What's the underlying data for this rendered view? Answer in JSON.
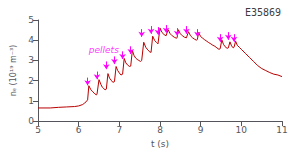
{
  "chart_data": {
    "type": "line",
    "title": "E35869",
    "xlabel": "t (s)",
    "ylabel": "nₑ (10¹⁹ m⁻³)",
    "color": "#bb0000",
    "xlim": [
      5,
      11
    ],
    "ylim": [
      0,
      5
    ],
    "xticks": [
      5,
      6,
      7,
      8,
      9,
      10,
      11
    ],
    "yticks": [
      0,
      1,
      2,
      3,
      4,
      5
    ],
    "grid": false,
    "x": [
      5.0,
      5.3,
      5.5,
      5.7,
      5.9,
      6.0,
      6.1,
      6.15,
      6.18,
      6.2,
      6.22,
      6.25,
      6.3,
      6.35,
      6.38,
      6.4,
      6.43,
      6.45,
      6.5,
      6.55,
      6.58,
      6.62,
      6.65,
      6.68,
      6.72,
      6.76,
      6.8,
      6.84,
      6.88,
      6.92,
      6.96,
      7.0,
      7.04,
      7.08,
      7.12,
      7.16,
      7.2,
      7.25,
      7.28,
      7.32,
      7.36,
      7.4,
      7.44,
      7.48,
      7.52,
      7.55,
      7.6,
      7.65,
      7.7,
      7.75,
      7.78,
      7.82,
      7.87,
      7.92,
      7.95,
      8.0,
      8.05,
      8.1,
      8.15,
      8.2,
      8.25,
      8.3,
      8.35,
      8.4,
      8.42,
      8.45,
      8.5,
      8.55,
      8.6,
      8.65,
      8.7,
      8.75,
      8.8,
      8.85,
      8.9,
      8.92,
      8.95,
      9.0,
      9.05,
      9.1,
      9.15,
      9.2,
      9.25,
      9.3,
      9.35,
      9.4,
      9.45,
      9.48,
      9.52,
      9.56,
      9.6,
      9.65,
      9.68,
      9.72,
      9.76,
      9.8,
      9.82,
      9.86,
      9.9,
      9.95,
      10.0,
      10.1,
      10.2,
      10.3,
      10.4,
      10.5,
      10.6,
      10.7,
      10.8,
      10.9,
      11.0
    ],
    "values": [
      0.65,
      0.65,
      0.68,
      0.7,
      0.72,
      0.75,
      0.82,
      0.9,
      0.95,
      1.0,
      1.05,
      1.75,
      1.55,
      1.45,
      1.38,
      1.35,
      1.3,
      1.32,
      2.05,
      1.8,
      1.68,
      1.6,
      1.55,
      1.58,
      2.35,
      2.12,
      2.02,
      1.92,
      1.95,
      2.7,
      2.5,
      2.38,
      2.28,
      2.32,
      3.1,
      2.88,
      2.78,
      2.7,
      2.72,
      3.5,
      3.25,
      3.12,
      3.05,
      3.0,
      2.95,
      3.0,
      3.9,
      3.65,
      3.52,
      3.42,
      3.4,
      4.2,
      3.98,
      3.88,
      3.82,
      4.6,
      4.38,
      4.28,
      4.22,
      4.52,
      4.32,
      4.22,
      4.15,
      4.1,
      4.12,
      4.52,
      4.32,
      4.22,
      4.15,
      4.12,
      4.42,
      4.22,
      4.12,
      4.05,
      4.0,
      4.05,
      4.38,
      4.18,
      4.1,
      4.02,
      3.95,
      3.88,
      3.82,
      3.75,
      3.7,
      3.62,
      3.55,
      3.58,
      4.02,
      3.8,
      3.68,
      3.6,
      3.62,
      3.92,
      3.72,
      3.62,
      3.65,
      3.95,
      3.75,
      3.65,
      3.55,
      3.35,
      3.15,
      2.95,
      2.75,
      2.6,
      2.5,
      2.4,
      2.32,
      2.28,
      2.2
    ],
    "arrows": {
      "color": "#ff00ff",
      "x": [
        6.22,
        6.45,
        6.68,
        6.88,
        7.08,
        7.28,
        7.55,
        7.78,
        7.95,
        8.15,
        8.42,
        8.65,
        8.92,
        9.48,
        9.68,
        9.82
      ],
      "y_start": [
        2.15,
        2.45,
        2.95,
        3.2,
        3.45,
        3.7,
        4.55,
        4.7,
        4.65,
        4.75,
        4.6,
        4.7,
        4.55,
        4.3,
        4.4,
        4.3
      ],
      "y_end": [
        1.77,
        2.07,
        2.57,
        2.82,
        3.07,
        3.32,
        4.17,
        4.32,
        4.27,
        4.37,
        4.22,
        4.32,
        4.17,
        3.92,
        4.02,
        3.92
      ]
    },
    "annotations": [
      {
        "text": "pellets",
        "x": 6.25,
        "y": 3.5,
        "color": "#ff00ff"
      }
    ]
  }
}
